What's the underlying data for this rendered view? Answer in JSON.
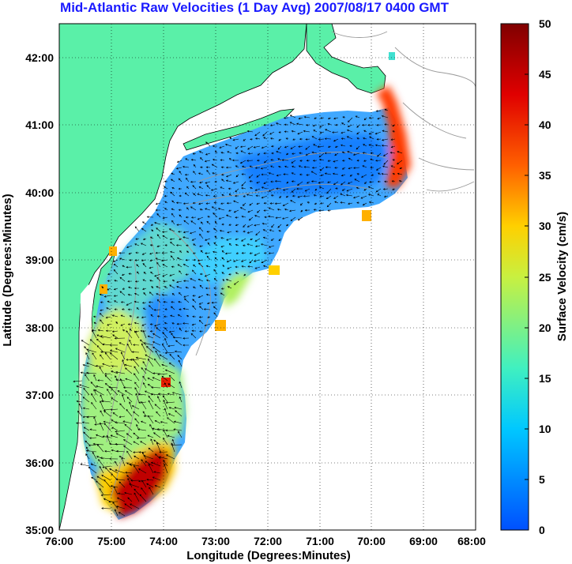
{
  "title": "Mid-Atlantic Raw Velocities (1 Day Avg) 2007/08/17 0400 GMT",
  "map": {
    "x_axis": {
      "label": "Longitude (Degrees:Minutes)",
      "ticks": [
        "76:00",
        "75:00",
        "74:00",
        "73:00",
        "72:00",
        "71:00",
        "70:00",
        "69:00",
        "68:00"
      ],
      "range_deg_west": [
        76,
        68
      ]
    },
    "y_axis": {
      "label": "Latitude (Degrees:Minutes)",
      "ticks": [
        "35:00",
        "36:00",
        "37:00",
        "38:00",
        "39:00",
        "40:00",
        "41:00",
        "42:00"
      ],
      "range_deg_north": [
        35,
        42.5
      ]
    },
    "grid": "dotted",
    "land_color": "#5af0a8",
    "vector_color": "#000000",
    "bathymetry_contour_color": "#9a9a9a"
  },
  "colorbar": {
    "label": "Surface Velocity (cm/s)",
    "range": [
      0,
      50
    ],
    "ticks": [
      "0",
      "5",
      "10",
      "15",
      "20",
      "25",
      "30",
      "35",
      "40",
      "45",
      "50"
    ],
    "colors": [
      "#0060ff",
      "#00c8ff",
      "#40f0c0",
      "#c8f040",
      "#ffd000",
      "#ff6000",
      "#e00000",
      "#800000"
    ]
  }
}
